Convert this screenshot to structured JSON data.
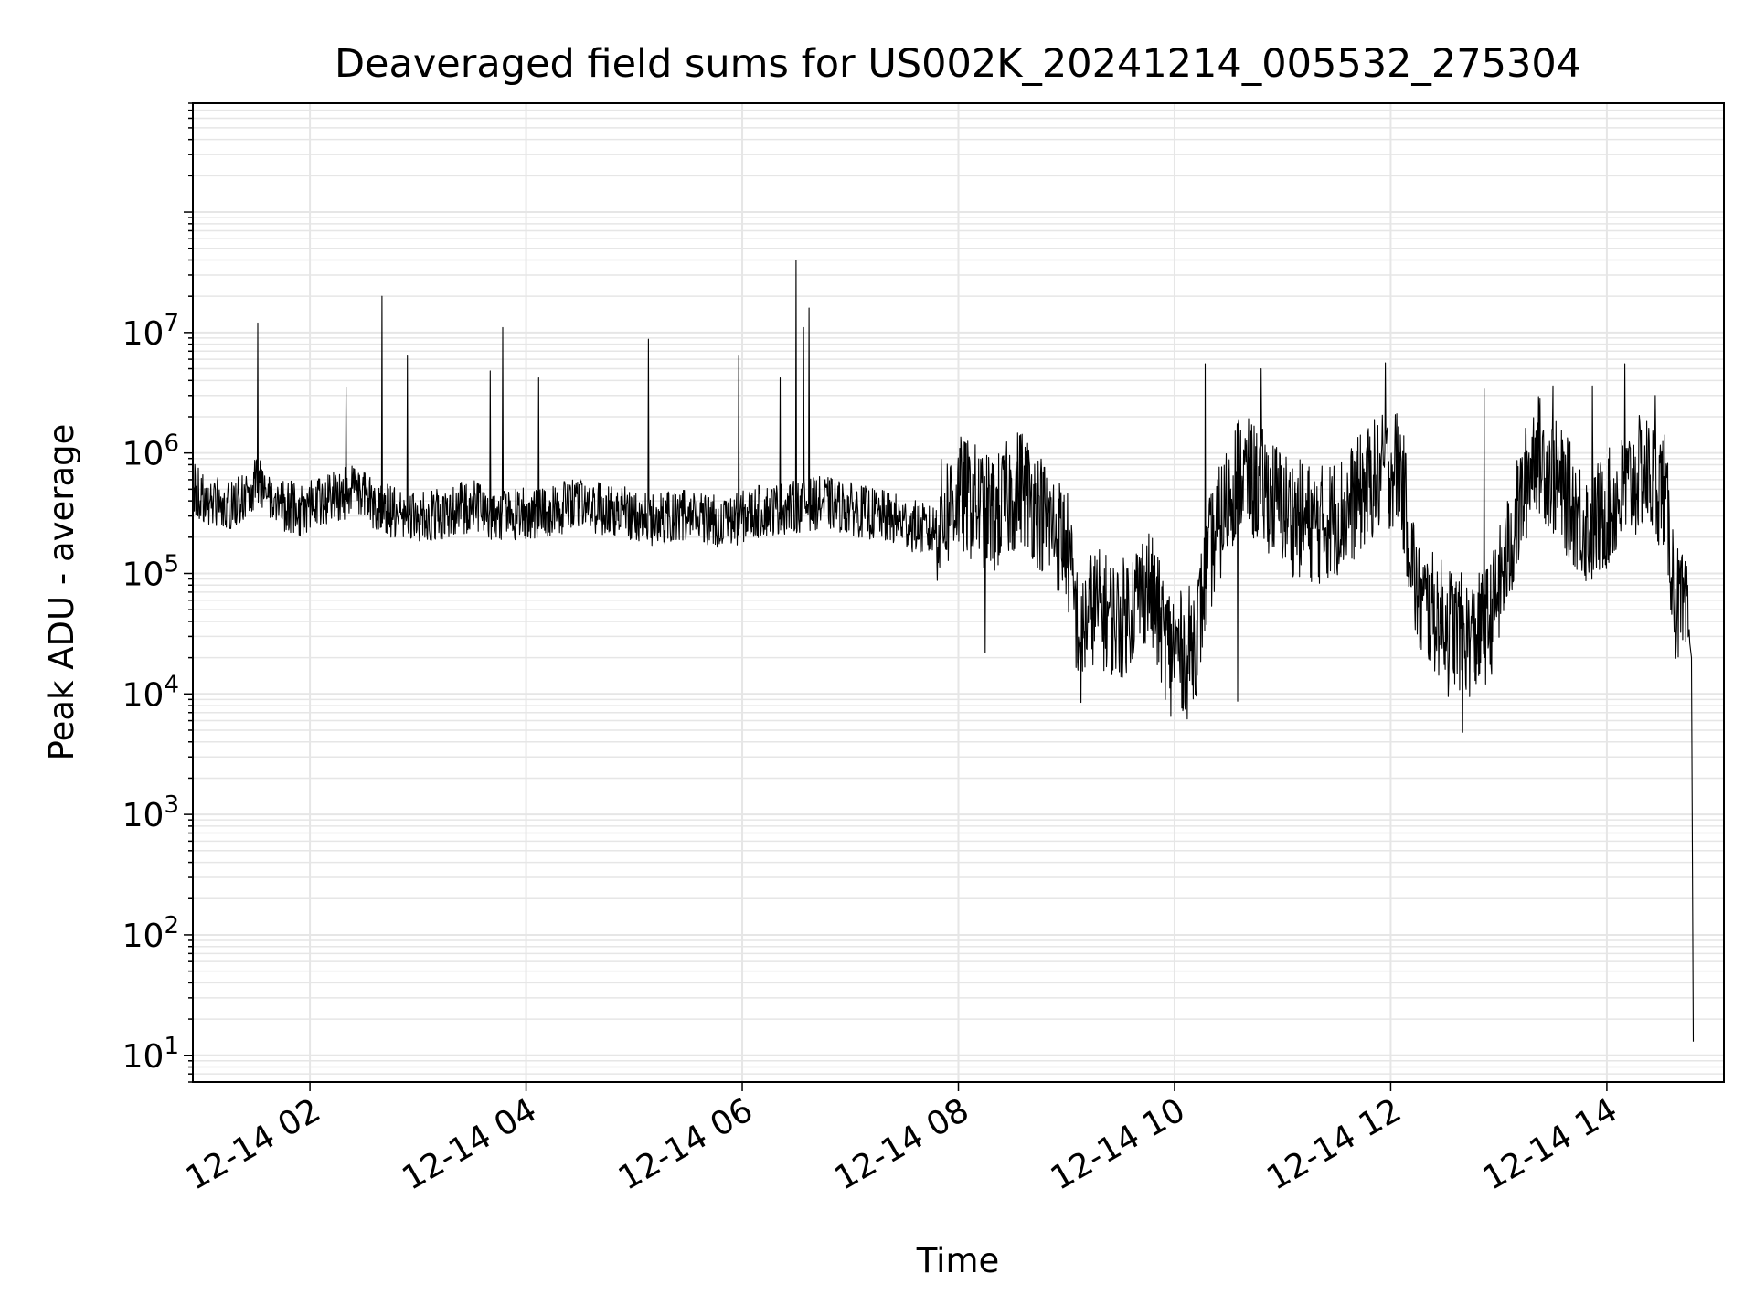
{
  "chart_data": {
    "type": "line",
    "title": "Deaveraged field sums for US002K_20241214_005532_275304",
    "xlabel": "Time",
    "ylabel": "Peak ADU - average",
    "y_scale": "log",
    "ylim": [
      6,
      800000000
    ],
    "xlim": [
      "2024-12-14 00:55",
      "2024-12-14 15:05"
    ],
    "x_ticks": [
      "12-14 02",
      "12-14 04",
      "12-14 06",
      "12-14 08",
      "12-14 10",
      "12-14 12",
      "12-14 14"
    ],
    "x_tick_times": [
      "2024-12-14 02:00",
      "2024-12-14 04:00",
      "2024-12-14 06:00",
      "2024-12-14 08:00",
      "2024-12-14 10:00",
      "2024-12-14 12:00",
      "2024-12-14 14:00"
    ],
    "y_ticks": [
      {
        "base": "10",
        "exp": "1",
        "value": 10
      },
      {
        "base": "10",
        "exp": "2",
        "value": 100
      },
      {
        "base": "10",
        "exp": "3",
        "value": 1000
      },
      {
        "base": "10",
        "exp": "4",
        "value": 10000
      },
      {
        "base": "10",
        "exp": "5",
        "value": 100000
      },
      {
        "base": "10",
        "exp": "6",
        "value": 1000000
      },
      {
        "base": "10",
        "exp": "7",
        "value": 10000000
      }
    ],
    "grid": true,
    "line_color": "#000000",
    "grid_color": "#e6e6e6",
    "series": [
      {
        "x": [
          "2024-12-14 00:55",
          "2024-12-14 01:05",
          "2024-12-14 01:15",
          "2024-12-14 01:25",
          "2024-12-14 01:30",
          "2024-12-14 01:40",
          "2024-12-14 01:55",
          "2024-12-14 02:10",
          "2024-12-14 02:25",
          "2024-12-14 02:35",
          "2024-12-14 02:50",
          "2024-12-14 03:10",
          "2024-12-14 03:30",
          "2024-12-14 03:45",
          "2024-12-14 04:05",
          "2024-12-14 04:30",
          "2024-12-14 04:50",
          "2024-12-14 05:10",
          "2024-12-14 05:30",
          "2024-12-14 05:50",
          "2024-12-14 06:10",
          "2024-12-14 06:30",
          "2024-12-14 06:45",
          "2024-12-14 07:05",
          "2024-12-14 07:25",
          "2024-12-14 07:45",
          "2024-12-14 08:00",
          "2024-12-14 08:10",
          "2024-12-14 08:20",
          "2024-12-14 08:35",
          "2024-12-14 08:50",
          "2024-12-14 09:00",
          "2024-12-14 09:07",
          "2024-12-14 09:15",
          "2024-12-14 09:30",
          "2024-12-14 09:45",
          "2024-12-14 09:55",
          "2024-12-14 10:05",
          "2024-12-14 10:12",
          "2024-12-14 10:20",
          "2024-12-14 10:35",
          "2024-12-14 10:50",
          "2024-12-14 11:05",
          "2024-12-14 11:20",
          "2024-12-14 11:35",
          "2024-12-14 11:50",
          "2024-12-14 12:05",
          "2024-12-14 12:15",
          "2024-12-14 12:30",
          "2024-12-14 12:45",
          "2024-12-14 12:55",
          "2024-12-14 13:05",
          "2024-12-14 13:20",
          "2024-12-14 13:35",
          "2024-12-14 13:50",
          "2024-12-14 14:05",
          "2024-12-14 14:20",
          "2024-12-14 14:32",
          "2024-12-14 14:38",
          "2024-12-14 14:44",
          "2024-12-14 14:46",
          "2024-12-14 14:47",
          "2024-12-14 14:48"
        ],
        "values": [
          500000,
          400000,
          350000,
          450000,
          600000,
          400000,
          330000,
          420000,
          480000,
          380000,
          300000,
          310000,
          360000,
          300000,
          320000,
          370000,
          330000,
          280000,
          310000,
          260000,
          330000,
          360000,
          390000,
          330000,
          280000,
          220000,
          450000,
          380000,
          300000,
          550000,
          260000,
          180000,
          30000,
          55000,
          40000,
          85000,
          28000,
          22000,
          30000,
          150000,
          700000,
          500000,
          300000,
          250000,
          330000,
          600000,
          800000,
          60000,
          40000,
          28000,
          40000,
          140000,
          1100000,
          500000,
          230000,
          400000,
          700000,
          500000,
          60000,
          40000,
          30000,
          20000,
          13
        ]
      }
    ],
    "spikes": [
      {
        "x": "2024-12-14 01:31",
        "y": 12000000
      },
      {
        "x": "2024-12-14 02:20",
        "y": 3500000
      },
      {
        "x": "2024-12-14 02:40",
        "y": 20000000
      },
      {
        "x": "2024-12-14 02:54",
        "y": 6500000
      },
      {
        "x": "2024-12-14 03:40",
        "y": 4800000
      },
      {
        "x": "2024-12-14 03:47",
        "y": 11000000
      },
      {
        "x": "2024-12-14 04:07",
        "y": 4200000
      },
      {
        "x": "2024-12-14 05:08",
        "y": 8800000
      },
      {
        "x": "2024-12-14 05:58",
        "y": 6500000
      },
      {
        "x": "2024-12-14 06:21",
        "y": 4200000
      },
      {
        "x": "2024-12-14 06:30",
        "y": 40000000
      },
      {
        "x": "2024-12-14 06:34",
        "y": 11000000
      },
      {
        "x": "2024-12-14 06:37",
        "y": 16000000
      },
      {
        "x": "2024-12-14 10:17",
        "y": 5500000
      },
      {
        "x": "2024-12-14 10:48",
        "y": 5000000
      },
      {
        "x": "2024-12-14 11:57",
        "y": 5600000
      },
      {
        "x": "2024-12-14 12:52",
        "y": 3400000
      },
      {
        "x": "2024-12-14 13:30",
        "y": 3600000
      },
      {
        "x": "2024-12-14 13:52",
        "y": 3600000
      },
      {
        "x": "2024-12-14 14:10",
        "y": 5500000
      },
      {
        "x": "2024-12-14 14:27",
        "y": 3000000
      }
    ],
    "dips": [
      {
        "x": "2024-12-14 08:15",
        "y": 22000
      },
      {
        "x": "2024-12-14 09:08",
        "y": 8500
      },
      {
        "x": "2024-12-14 09:58",
        "y": 6500
      },
      {
        "x": "2024-12-14 10:07",
        "y": 6200
      },
      {
        "x": "2024-12-14 10:35",
        "y": 8700
      },
      {
        "x": "2024-12-14 12:32",
        "y": 9500
      },
      {
        "x": "2024-12-14 12:40",
        "y": 4800
      }
    ]
  }
}
